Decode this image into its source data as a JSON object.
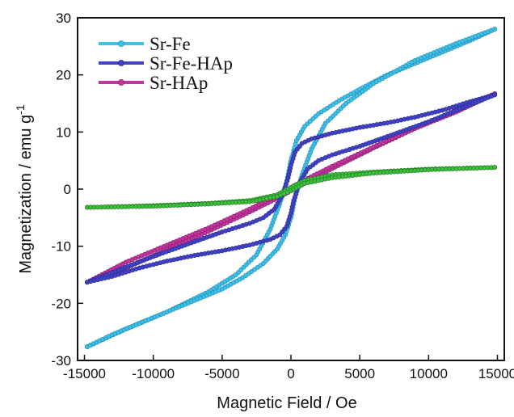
{
  "chart_data": {
    "type": "line",
    "title": "",
    "xlabel": "Magnetic Field / Oe",
    "ylabel": "Magnetization / emu g",
    "ylabel_superscript": "-1",
    "xlim": [
      -15500,
      15500
    ],
    "ylim": [
      -30,
      30
    ],
    "xticks": [
      -15000,
      -10000,
      -5000,
      0,
      5000,
      10000,
      15000
    ],
    "yticks": [
      -30,
      -20,
      -10,
      0,
      10,
      20,
      30
    ],
    "grid": false,
    "legend_position": "top-left",
    "series": [
      {
        "name": "Sr-Fe",
        "color": "#3fc0e6",
        "marker_edge": "#1f8fb8",
        "upper": [
          [
            -14800,
            -27.6
          ],
          [
            -12000,
            -24.5
          ],
          [
            -9000,
            -21.5
          ],
          [
            -6000,
            -18.0
          ],
          [
            -4000,
            -15.0
          ],
          [
            -2500,
            -11.5
          ],
          [
            -1500,
            -7.0
          ],
          [
            -800,
            -2.5
          ],
          [
            -300,
            1.5
          ],
          [
            0,
            5.0
          ],
          [
            400,
            8.5
          ],
          [
            1000,
            11.0
          ],
          [
            2000,
            13.2
          ],
          [
            3500,
            15.5
          ],
          [
            5000,
            17.5
          ],
          [
            7000,
            20.0
          ],
          [
            9000,
            22.0
          ],
          [
            11000,
            24.0
          ],
          [
            13000,
            26.0
          ],
          [
            14800,
            28.0
          ]
        ],
        "lower": [
          [
            -14800,
            -27.6
          ],
          [
            -13000,
            -25.5
          ],
          [
            -11000,
            -23.5
          ],
          [
            -9000,
            -21.5
          ],
          [
            -7000,
            -19.5
          ],
          [
            -5000,
            -17.5
          ],
          [
            -3500,
            -15.5
          ],
          [
            -2000,
            -13.0
          ],
          [
            -1000,
            -10.5
          ],
          [
            -400,
            -8.0
          ],
          [
            0,
            -5.0
          ],
          [
            300,
            -1.5
          ],
          [
            800,
            2.5
          ],
          [
            1500,
            7.0
          ],
          [
            2500,
            11.5
          ],
          [
            4000,
            15.0
          ],
          [
            6000,
            18.5
          ],
          [
            9000,
            22.5
          ],
          [
            12000,
            25.5
          ],
          [
            14800,
            28.0
          ]
        ]
      },
      {
        "name": "Sr-Fe-HAp",
        "color": "#4242c8",
        "marker_edge": "#2a2a90",
        "upper": [
          [
            -14800,
            -16.3
          ],
          [
            -10000,
            -11.8
          ],
          [
            -7000,
            -9.2
          ],
          [
            -5000,
            -7.5
          ],
          [
            -3000,
            -6.0
          ],
          [
            -2000,
            -5.0
          ],
          [
            -1200,
            -3.5
          ],
          [
            -600,
            -1.0
          ],
          [
            -200,
            2.0
          ],
          [
            0,
            4.2
          ],
          [
            300,
            6.5
          ],
          [
            800,
            8.0
          ],
          [
            1500,
            8.8
          ],
          [
            3000,
            9.8
          ],
          [
            5000,
            10.8
          ],
          [
            7000,
            11.6
          ],
          [
            9000,
            12.6
          ],
          [
            11000,
            13.8
          ],
          [
            13000,
            15.3
          ],
          [
            14800,
            16.5
          ]
        ],
        "lower": [
          [
            -14800,
            -16.3
          ],
          [
            -13000,
            -15.3
          ],
          [
            -11000,
            -13.8
          ],
          [
            -9000,
            -12.6
          ],
          [
            -7000,
            -11.6
          ],
          [
            -5000,
            -10.8
          ],
          [
            -3000,
            -9.8
          ],
          [
            -1500,
            -8.8
          ],
          [
            -800,
            -8.0
          ],
          [
            -300,
            -6.5
          ],
          [
            0,
            -4.2
          ],
          [
            200,
            -2.0
          ],
          [
            600,
            1.0
          ],
          [
            1200,
            3.5
          ],
          [
            2000,
            5.0
          ],
          [
            3000,
            6.0
          ],
          [
            5000,
            7.5
          ],
          [
            7000,
            9.2
          ],
          [
            10000,
            11.8
          ],
          [
            14800,
            16.5
          ]
        ]
      },
      {
        "name": "Sr-HAp",
        "color": "#c2359c",
        "marker_edge": "#8a1f70",
        "upper": [
          [
            -14800,
            -16.3
          ],
          [
            -12000,
            -13.8
          ],
          [
            -9000,
            -10.6
          ],
          [
            -6000,
            -7.4
          ],
          [
            -3000,
            -4.0
          ],
          [
            -1000,
            -1.6
          ],
          [
            0,
            -0.3
          ],
          [
            1000,
            1.0
          ],
          [
            3000,
            3.6
          ],
          [
            6000,
            7.2
          ],
          [
            9000,
            10.6
          ],
          [
            12000,
            13.8
          ],
          [
            14800,
            16.7
          ]
        ],
        "lower": [
          [
            -14800,
            -16.3
          ],
          [
            -12000,
            -12.8
          ],
          [
            -9000,
            -9.8
          ],
          [
            -6000,
            -6.8
          ],
          [
            -3000,
            -3.5
          ],
          [
            -1000,
            -1.0
          ],
          [
            0,
            0.3
          ],
          [
            1000,
            1.6
          ],
          [
            3000,
            4.0
          ],
          [
            6000,
            7.4
          ],
          [
            9000,
            10.6
          ],
          [
            12000,
            13.5
          ],
          [
            14800,
            16.7
          ]
        ]
      },
      {
        "name": "",
        "color": "#3fbf3f",
        "marker_edge": "#1f7f1f",
        "upper": [
          [
            -14800,
            -3.2
          ],
          [
            -10000,
            -2.9
          ],
          [
            -6000,
            -2.5
          ],
          [
            -3000,
            -2.0
          ],
          [
            -1000,
            -1.0
          ],
          [
            0,
            0.3
          ],
          [
            1000,
            1.5
          ],
          [
            3000,
            2.5
          ],
          [
            6000,
            3.0
          ],
          [
            10000,
            3.5
          ],
          [
            14800,
            3.8
          ]
        ],
        "lower": [
          [
            -14800,
            -3.2
          ],
          [
            -10000,
            -3.0
          ],
          [
            -6000,
            -2.6
          ],
          [
            -3000,
            -2.2
          ],
          [
            -1000,
            -1.3
          ],
          [
            0,
            -0.3
          ],
          [
            1000,
            1.0
          ],
          [
            3000,
            2.0
          ],
          [
            6000,
            2.8
          ],
          [
            10000,
            3.4
          ],
          [
            14800,
            3.8
          ]
        ]
      }
    ]
  }
}
